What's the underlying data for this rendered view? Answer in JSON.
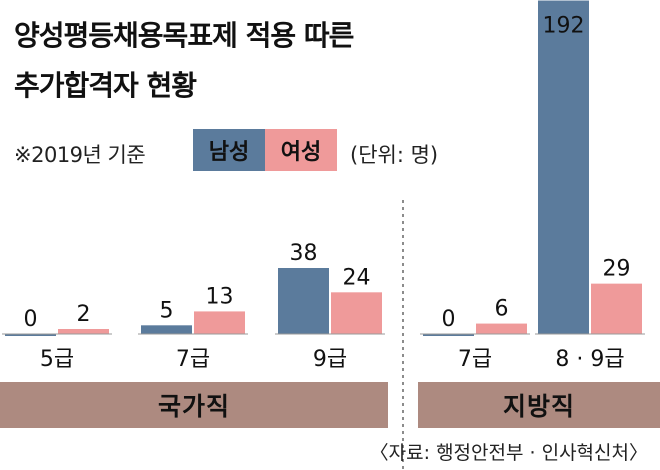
{
  "title_line1": "양성평등채용목표제 적용 따른",
  "title_line2": "추가합격자 현황",
  "basis_note": "※2019년 기준",
  "legend": {
    "male": "남성",
    "female": "여성"
  },
  "unit": "(단위: 명)",
  "source": "〈자료: 행정안전부 · 인사혁신처〉",
  "colors": {
    "male": "#5b7b9c",
    "female": "#ef9a9a",
    "group_band": "#ad8a80",
    "baseline": "#999999"
  },
  "chart_data": {
    "type": "bar",
    "title": "양성평등채용목표제 적용 따른 추가합격자 현황",
    "subtitle": "※2019년 기준",
    "unit": "(단위: 명)",
    "groups": [
      {
        "name": "국가직",
        "categories": [
          "5급",
          "7급",
          "9급"
        ]
      },
      {
        "name": "지방직",
        "categories": [
          "7급",
          "8 · 9급"
        ]
      }
    ],
    "categories": [
      "5급",
      "7급",
      "9급",
      "7급",
      "8 · 9급"
    ],
    "series": [
      {
        "name": "남성",
        "values": [
          0,
          5,
          38,
          0,
          192
        ]
      },
      {
        "name": "여성",
        "values": [
          2,
          13,
          24,
          6,
          29
        ]
      }
    ],
    "legend_position": "top",
    "grid": false
  }
}
